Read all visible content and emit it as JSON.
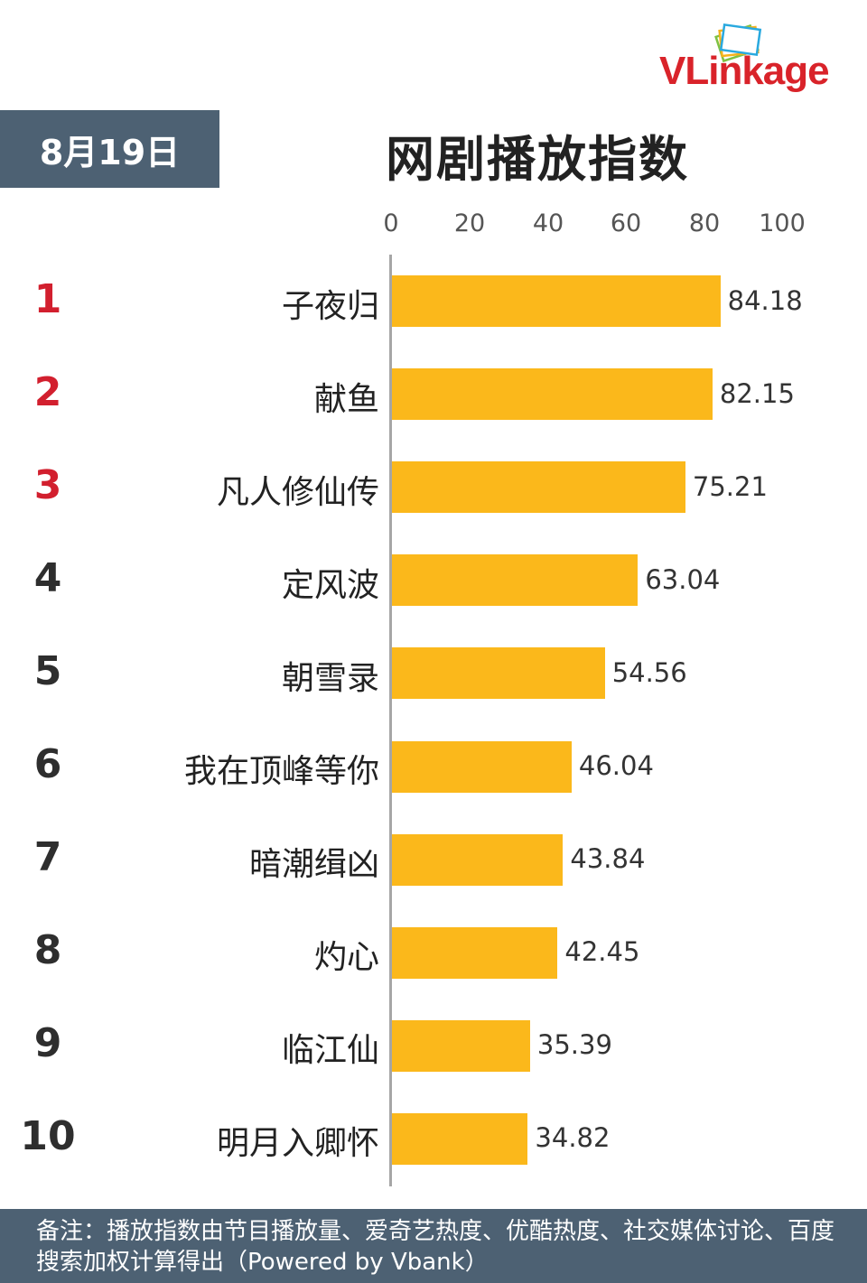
{
  "brand": {
    "logo_text": "VLinkage"
  },
  "header": {
    "date": "8月19日",
    "title": "网剧播放指数"
  },
  "chart_data": {
    "type": "bar",
    "orientation": "horizontal",
    "title": "网剧播放指数",
    "xlim": [
      0,
      100
    ],
    "xticks": [
      0,
      20,
      40,
      60,
      80,
      100
    ],
    "xticks_label": [
      "0",
      "20",
      "40",
      "60",
      "80",
      "100"
    ],
    "ranks": [
      "1",
      "2",
      "3",
      "4",
      "5",
      "6",
      "7",
      "8",
      "9",
      "10"
    ],
    "categories": [
      "子夜归",
      "献鱼",
      "凡人修仙传",
      "定风波",
      "朝雪录",
      "我在顶峰等你",
      "暗潮缉凶",
      "灼心",
      "临江仙",
      "明月入卿怀"
    ],
    "values": [
      84.18,
      82.15,
      75.21,
      63.04,
      54.56,
      46.04,
      43.84,
      42.45,
      35.39,
      34.82
    ],
    "value_labels": [
      "84.18",
      "82.15",
      "75.21",
      "63.04",
      "54.56",
      "46.04",
      "43.84",
      "42.45",
      "35.39",
      "34.82"
    ],
    "bar_color": "#fbb81b",
    "top_rank_color": "#d21f2e",
    "rank_color": "#2e2e2e",
    "grid": false
  },
  "footnote": {
    "text": "备注：播放指数由节目播放量、爱奇艺热度、优酷热度、社交媒体讨论、百度搜索加权计算得出（Powered by Vbank）"
  },
  "colors": {
    "header_bg": "#4d6173",
    "logo_red": "#d9232a"
  }
}
